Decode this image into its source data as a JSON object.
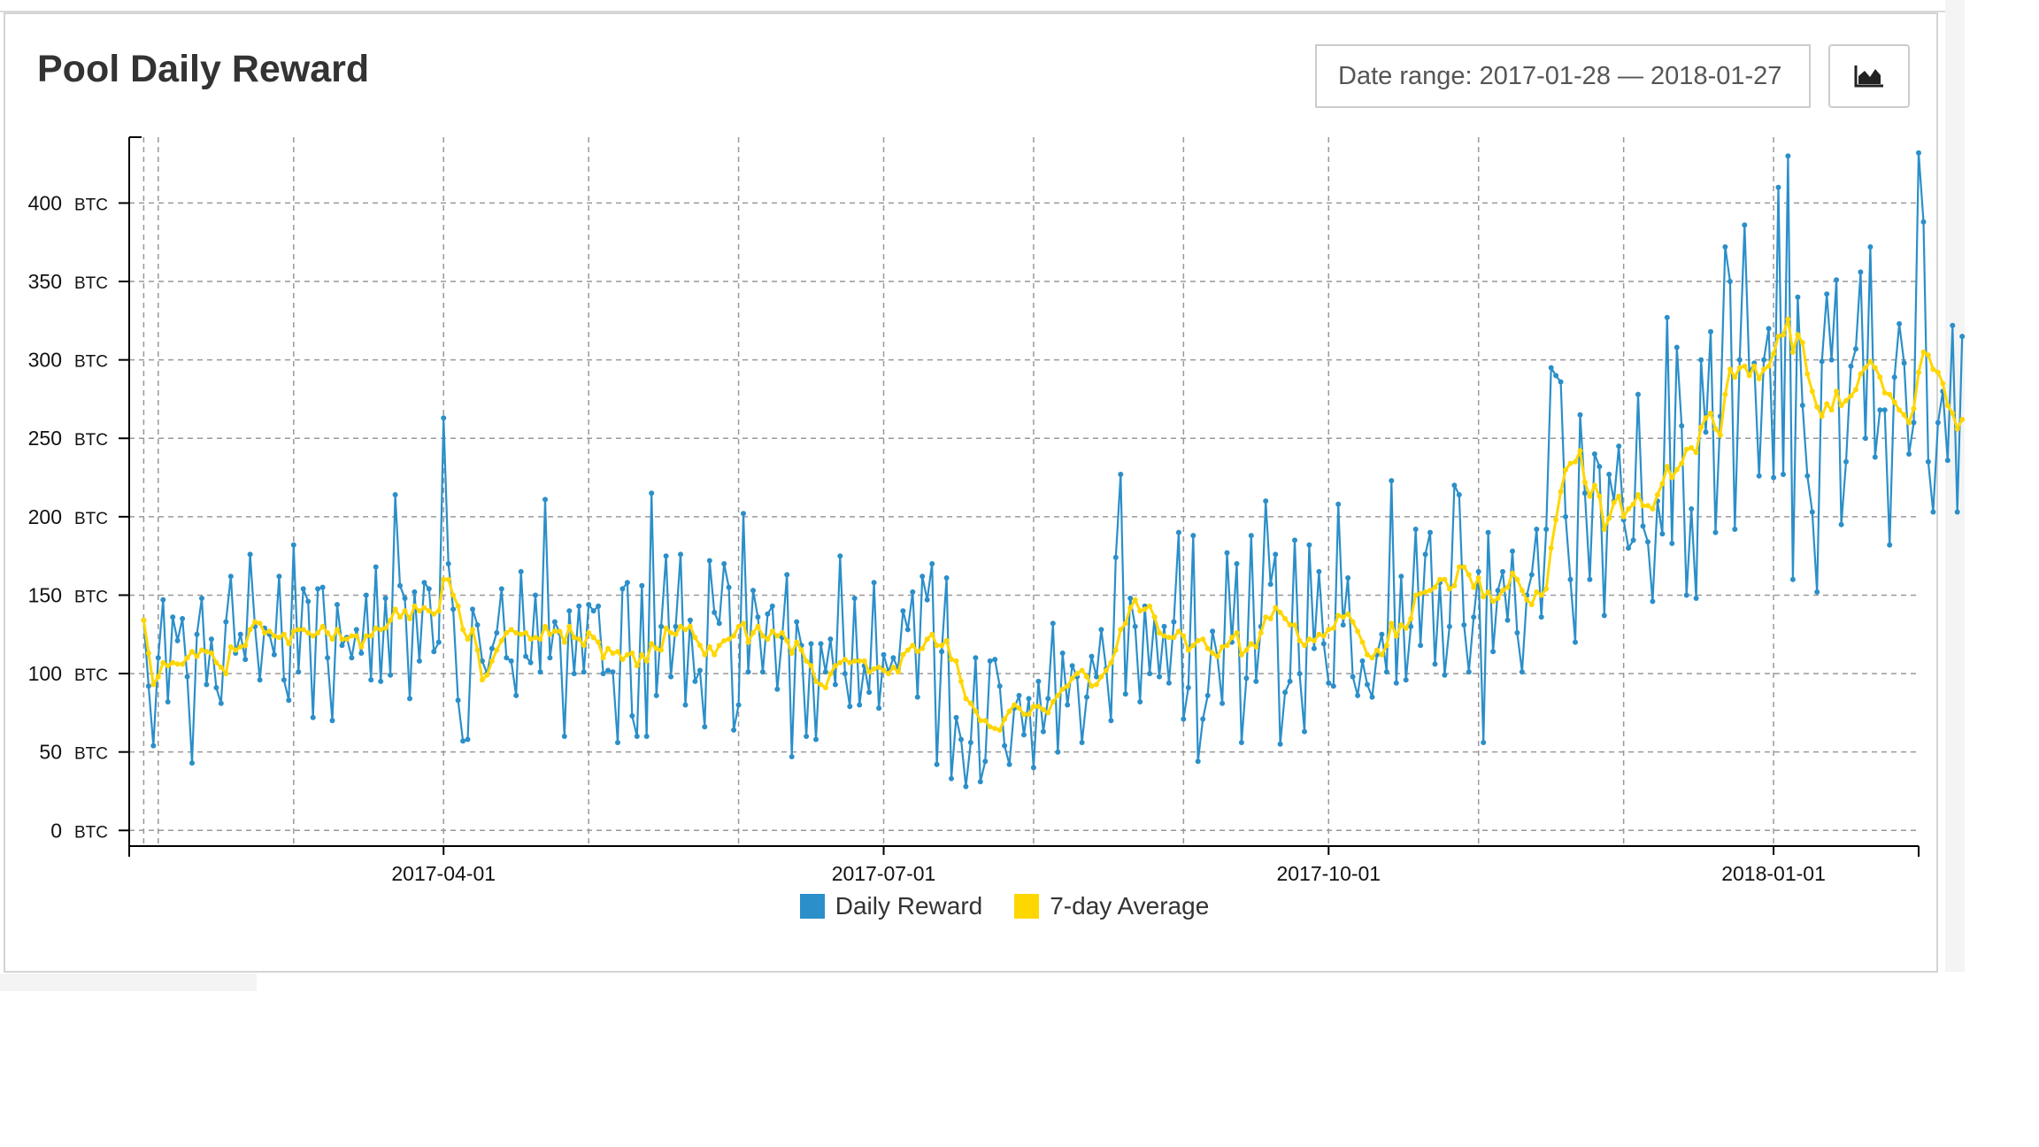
{
  "panel": {
    "title": "Pool Daily Reward",
    "date_range_label": "Date range: 2017-01-28 — 2018-01-27",
    "chart_button_icon": "area-chart-icon"
  },
  "colors": {
    "daily": "#2b8fc9",
    "average": "#ffd700",
    "grid": "#999999",
    "axis": "#000000"
  },
  "chart_data": {
    "type": "line",
    "title": "Pool Daily Reward",
    "xlabel": "",
    "ylabel": "",
    "x_range": [
      "2017-01-26",
      "2018-01-31"
    ],
    "ylim": [
      -10,
      442
    ],
    "y_ticks": [
      0,
      50,
      100,
      150,
      200,
      250,
      300,
      350,
      400
    ],
    "y_tick_labels": [
      "0",
      "50",
      "100",
      "150",
      "200",
      "250",
      "300",
      "350",
      "400"
    ],
    "y_unit": "BTC",
    "x_ticks": [
      "2017-04-01",
      "2017-07-01",
      "2017-10-01",
      "2018-01-01"
    ],
    "x_tick_labels": [
      "2017-04-01",
      "2017-07-01",
      "2017-10-01",
      "2018-01-01"
    ],
    "grid": true,
    "legend_position": "bottom",
    "x_start": "2017-01-29",
    "x_interval": "1 day",
    "series": [
      {
        "name": "Daily Reward",
        "values": [
          134,
          92,
          54,
          110,
          147,
          82,
          136,
          121,
          135,
          98,
          43,
          125,
          148,
          93,
          122,
          91,
          81,
          133,
          162,
          113,
          125,
          109,
          176,
          130,
          96,
          129,
          125,
          112,
          162,
          96,
          83,
          182,
          101,
          154,
          146,
          72,
          154,
          155,
          110,
          70,
          144,
          118,
          123,
          110,
          128,
          113,
          150,
          96,
          168,
          95,
          148,
          99,
          214,
          156,
          148,
          84,
          152,
          108,
          158,
          154,
          114,
          120,
          263,
          170,
          141,
          83,
          57,
          58,
          141,
          131,
          108,
          100,
          116,
          126,
          154,
          110,
          108,
          86,
          165,
          111,
          107,
          150,
          101,
          211,
          110,
          133,
          126,
          60,
          140,
          100,
          143,
          101,
          144,
          140,
          143,
          100,
          102,
          101,
          56,
          154,
          158,
          73,
          60,
          156,
          60,
          215,
          86,
          130,
          175,
          98,
          130,
          176,
          80,
          134,
          95,
          102,
          66,
          172,
          139,
          132,
          170,
          155,
          64,
          80,
          202,
          101,
          153,
          136,
          101,
          138,
          143,
          90,
          123,
          163,
          47,
          133,
          118,
          60,
          119,
          58,
          119,
          101,
          122,
          93,
          175,
          100,
          79,
          148,
          80,
          105,
          88,
          158,
          78,
          112,
          101,
          110,
          103,
          140,
          128,
          152,
          85,
          162,
          147,
          170,
          42,
          114,
          161,
          33,
          72,
          58,
          28,
          56,
          110,
          31,
          44,
          108,
          109,
          92,
          54,
          42,
          78,
          86,
          61,
          84,
          40,
          95,
          63,
          84,
          132,
          50,
          113,
          80,
          105,
          98,
          56,
          85,
          111,
          98,
          128,
          103,
          70,
          174,
          227,
          87,
          148,
          130,
          82,
          143,
          100,
          136,
          98,
          130,
          94,
          133,
          190,
          71,
          91,
          188,
          44,
          71,
          86,
          127,
          111,
          81,
          177,
          120,
          170,
          56,
          97,
          188,
          95,
          130,
          210,
          157,
          176,
          55,
          88,
          95,
          185,
          100,
          63,
          182,
          116,
          165,
          119,
          94,
          92,
          208,
          131,
          161,
          98,
          86,
          108,
          93,
          85,
          112,
          125,
          101,
          223,
          94,
          162,
          96,
          130,
          192,
          118,
          176,
          190,
          106,
          158,
          99,
          130,
          220,
          214,
          131,
          101,
          136,
          165,
          56,
          190,
          114,
          153,
          165,
          134,
          178,
          126,
          101,
          150,
          163,
          192,
          136,
          192,
          295,
          290,
          286,
          200,
          160,
          120,
          265,
          215,
          160,
          240,
          232,
          137,
          227,
          210,
          245,
          198,
          180,
          185,
          278,
          194,
          184,
          146,
          210,
          189,
          327,
          183,
          308,
          258,
          150,
          205,
          148,
          300,
          254,
          318,
          190,
          264,
          372,
          350,
          192,
          300,
          386,
          292,
          298,
          226,
          300,
          320,
          225,
          410,
          227,
          430,
          160,
          340,
          271,
          226,
          203,
          152,
          299,
          342,
          300,
          351,
          195,
          235,
          296,
          307,
          356,
          250,
          372,
          238,
          268,
          268,
          182,
          289,
          323,
          298,
          240,
          260,
          432,
          388,
          235,
          203,
          260,
          280,
          236,
          322,
          203,
          315
        ]
      },
      {
        "name": "7-day Average",
        "values": [
          134,
          113,
          93,
          98,
          107,
          105,
          107,
          106,
          106,
          110,
          114,
          111,
          115,
          114,
          113,
          107,
          104,
          100,
          117,
          115,
          117,
          118,
          128,
          133,
          132,
          126,
          127,
          124,
          123,
          125,
          119,
          127,
          128,
          128,
          126,
          124,
          126,
          130,
          126,
          122,
          128,
          122,
          122,
          124,
          124,
          117,
          124,
          124,
          129,
          128,
          129,
          134,
          141,
          136,
          140,
          135,
          143,
          140,
          142,
          140,
          138,
          140,
          160,
          160,
          150,
          143,
          128,
          122,
          128,
          115,
          96,
          99,
          108,
          115,
          121,
          126,
          128,
          126,
          125,
          126,
          122,
          123,
          122,
          130,
          125,
          127,
          127,
          120,
          130,
          123,
          122,
          118,
          126,
          123,
          120,
          110,
          116,
          113,
          114,
          109,
          112,
          113,
          105,
          112,
          108,
          119,
          116,
          115,
          129,
          126,
          125,
          130,
          128,
          130,
          123,
          118,
          112,
          117,
          112,
          118,
          121,
          122,
          124,
          130,
          132,
          120,
          126,
          130,
          124,
          122,
          127,
          124,
          126,
          121,
          113,
          120,
          115,
          108,
          105,
          95,
          93,
          91,
          100,
          105,
          107,
          109,
          107,
          108,
          108,
          108,
          101,
          103,
          104,
          102,
          100,
          104,
          101,
          112,
          115,
          118,
          114,
          116,
          122,
          125,
          118,
          118,
          121,
          109,
          108,
          95,
          84,
          81,
          76,
          70,
          70,
          66,
          65,
          64,
          71,
          76,
          80,
          78,
          74,
          74,
          79,
          79,
          77,
          75,
          82,
          86,
          90,
          92,
          97,
          100,
          102,
          98,
          92,
          93,
          98,
          102,
          107,
          115,
          128,
          132,
          142,
          147,
          140,
          141,
          143,
          136,
          126,
          124,
          123,
          123,
          127,
          124,
          115,
          118,
          121,
          122,
          116,
          113,
          111,
          117,
          118,
          123,
          126,
          112,
          115,
          119,
          117,
          126,
          136,
          135,
          142,
          139,
          135,
          131,
          131,
          121,
          118,
          122,
          121,
          125,
          124,
          128,
          129,
          137,
          136,
          138,
          133,
          127,
          120,
          112,
          110,
          115,
          112,
          118,
          132,
          124,
          131,
          129,
          135,
          150,
          151,
          152,
          153,
          155,
          160,
          160,
          154,
          156,
          168,
          168,
          163,
          155,
          161,
          149,
          152,
          146,
          148,
          153,
          155,
          164,
          160,
          153,
          147,
          144,
          152,
          150,
          154,
          180,
          198,
          216,
          230,
          234,
          235,
          242,
          222,
          213,
          220,
          213,
          192,
          199,
          209,
          213,
          200,
          205,
          208,
          214,
          207,
          207,
          205,
          214,
          221,
          232,
          225,
          230,
          234,
          243,
          244,
          241,
          257,
          263,
          266,
          256,
          252,
          278,
          294,
          289,
          295,
          296,
          290,
          296,
          288,
          294,
          296,
          304,
          315,
          316,
          326,
          305,
          316,
          311,
          291,
          280,
          270,
          264,
          272,
          268,
          280,
          271,
          274,
          277,
          281,
          291,
          295,
          299,
          295,
          289,
          279,
          278,
          273,
          268,
          265,
          260,
          269,
          292,
          305,
          303,
          294,
          292,
          285,
          271,
          266,
          256,
          262
        ]
      }
    ]
  },
  "legend": {
    "daily_label": "Daily Reward",
    "average_label": "7-day Average"
  }
}
